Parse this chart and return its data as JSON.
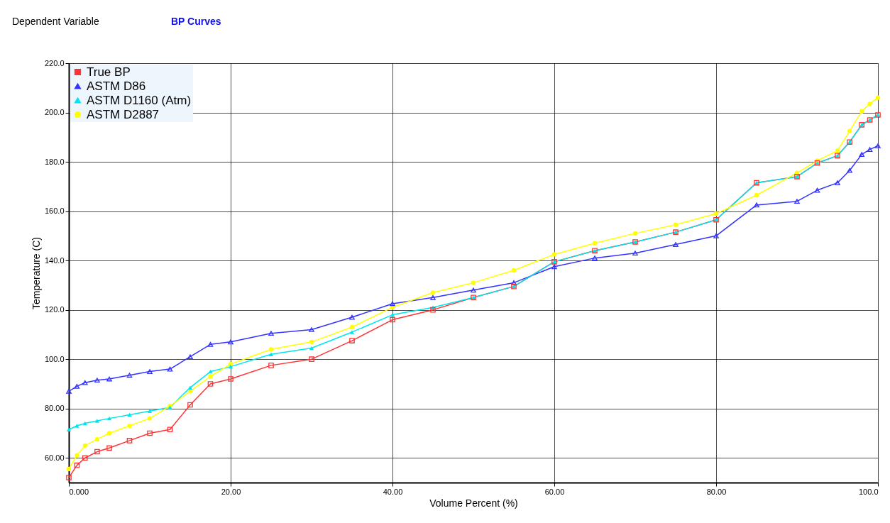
{
  "chart_data": {
    "type": "line",
    "annotations": [
      "Dependent Variable",
      "BP Curves"
    ],
    "xlabel": "Volume Percent (%)",
    "ylabel": "Temperature (C)",
    "x": [
      0,
      1,
      2,
      3.5,
      5,
      7.5,
      10,
      12.5,
      15,
      17.5,
      20,
      25,
      30,
      35,
      40,
      45,
      50,
      55,
      60,
      65,
      70,
      75,
      80,
      85,
      90,
      92.5,
      95,
      96.5,
      98,
      99,
      100
    ],
    "series": [
      {
        "name": "True BP",
        "color": "#ff3333",
        "marker": "square",
        "values": [
          52,
          57,
          60,
          62.5,
          64,
          67,
          70,
          71.5,
          81.5,
          90,
          92,
          97.5,
          100,
          107.5,
          116,
          120,
          125,
          129.5,
          139.5,
          144,
          147.5,
          151.5,
          156.5,
          171.5,
          174,
          179.5,
          182.5,
          188,
          195,
          197,
          199
        ]
      },
      {
        "name": "ASTM D86",
        "color": "#3333ff",
        "marker": "triangle",
        "values": [
          87,
          89,
          90.5,
          91.5,
          92,
          93.5,
          95,
          96,
          101,
          106,
          107,
          110.5,
          112,
          117,
          122.5,
          125,
          128,
          131,
          137.5,
          141,
          143,
          146.5,
          150,
          162.5,
          164,
          168.5,
          171.5,
          176.5,
          183,
          185,
          186.5
        ]
      },
      {
        "name": "ASTM D1160 (Atm)",
        "color": "#00e5ee",
        "marker": "triangle",
        "values": [
          71.5,
          73,
          74,
          75,
          76,
          77.5,
          79,
          80.5,
          88.5,
          95,
          97,
          102,
          104.5,
          111,
          118,
          121,
          125,
          129.5,
          139.5,
          144,
          147.5,
          151.5,
          156.5,
          171.5,
          174,
          179.5,
          182.5,
          188,
          195,
          197,
          199
        ]
      },
      {
        "name": "ASTM D2887",
        "color": "#ffff00",
        "marker": "circle",
        "values": [
          55.5,
          61,
          65,
          67.5,
          70,
          73,
          76,
          81,
          87,
          93,
          98,
          104,
          107,
          113,
          121,
          127,
          131,
          136,
          142.5,
          147,
          151,
          154.5,
          159,
          166.5,
          175.5,
          180.5,
          184.5,
          192.5,
          200.5,
          203.5,
          206
        ]
      }
    ],
    "xlim": [
      0,
      100
    ],
    "ylim": [
      50,
      220
    ],
    "xticks": [
      {
        "value": 0,
        "label": "0.000"
      },
      {
        "value": 20,
        "label": "20.00"
      },
      {
        "value": 40,
        "label": "40.00"
      },
      {
        "value": 60,
        "label": "60.00"
      },
      {
        "value": 80,
        "label": "80.00"
      },
      {
        "value": 100,
        "label": "100.0"
      }
    ],
    "yticks": [
      {
        "value": 60,
        "label": "60.00"
      },
      {
        "value": 80,
        "label": "80.00"
      },
      {
        "value": 100,
        "label": "100.0"
      },
      {
        "value": 120,
        "label": "120.0"
      },
      {
        "value": 140,
        "label": "140.0"
      },
      {
        "value": 160,
        "label": "160.0"
      },
      {
        "value": 180,
        "label": "180.0"
      },
      {
        "value": 200,
        "label": "200.0"
      },
      {
        "value": 220,
        "label": "220.0"
      }
    ],
    "grid": true,
    "legend": "top left",
    "line_style": "solid"
  }
}
